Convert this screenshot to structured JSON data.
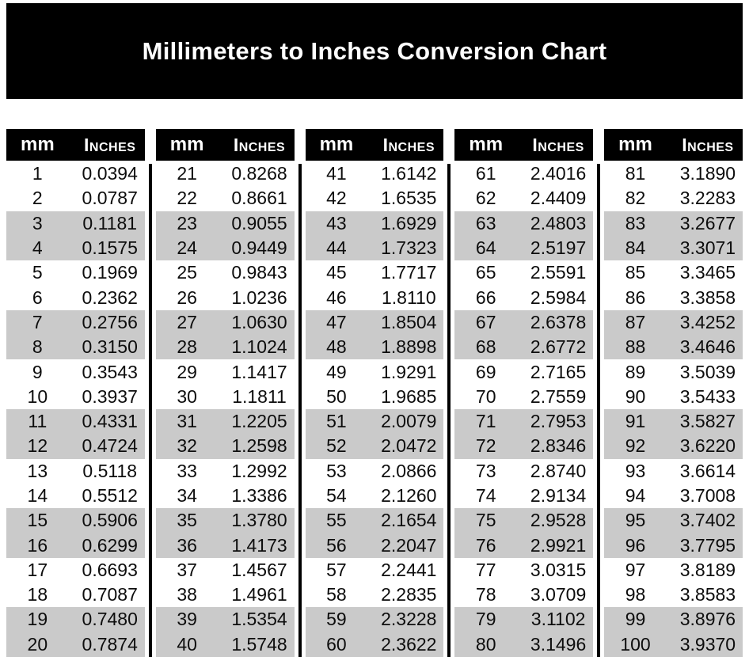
{
  "title": "Millimeters to Inches Conversion Chart",
  "columns": {
    "mm": "mm",
    "inches": "Inches"
  },
  "colors": {
    "page_bg": "#ffffff",
    "banner_bg": "#000000",
    "banner_text": "#ffffff",
    "header_bg": "#000000",
    "header_text": "#ffffff",
    "stripe": "#cacaca",
    "row_text": "#0d0d0d"
  },
  "tables": [
    {
      "rows": [
        {
          "mm": "1",
          "inches": "0.0394"
        },
        {
          "mm": "2",
          "inches": "0.0787"
        },
        {
          "mm": "3",
          "inches": "0.1181"
        },
        {
          "mm": "4",
          "inches": "0.1575"
        },
        {
          "mm": "5",
          "inches": "0.1969"
        },
        {
          "mm": "6",
          "inches": "0.2362"
        },
        {
          "mm": "7",
          "inches": "0.2756"
        },
        {
          "mm": "8",
          "inches": "0.3150"
        },
        {
          "mm": "9",
          "inches": "0.3543"
        },
        {
          "mm": "10",
          "inches": "0.3937"
        },
        {
          "mm": "11",
          "inches": "0.4331"
        },
        {
          "mm": "12",
          "inches": "0.4724"
        },
        {
          "mm": "13",
          "inches": "0.5118"
        },
        {
          "mm": "14",
          "inches": "0.5512"
        },
        {
          "mm": "15",
          "inches": "0.5906"
        },
        {
          "mm": "16",
          "inches": "0.6299"
        },
        {
          "mm": "17",
          "inches": "0.6693"
        },
        {
          "mm": "18",
          "inches": "0.7087"
        },
        {
          "mm": "19",
          "inches": "0.7480"
        },
        {
          "mm": "20",
          "inches": "0.7874"
        }
      ]
    },
    {
      "rows": [
        {
          "mm": "21",
          "inches": "0.8268"
        },
        {
          "mm": "22",
          "inches": "0.8661"
        },
        {
          "mm": "23",
          "inches": "0.9055"
        },
        {
          "mm": "24",
          "inches": "0.9449"
        },
        {
          "mm": "25",
          "inches": "0.9843"
        },
        {
          "mm": "26",
          "inches": "1.0236"
        },
        {
          "mm": "27",
          "inches": "1.0630"
        },
        {
          "mm": "28",
          "inches": "1.1024"
        },
        {
          "mm": "29",
          "inches": "1.1417"
        },
        {
          "mm": "30",
          "inches": "1.1811"
        },
        {
          "mm": "31",
          "inches": "1.2205"
        },
        {
          "mm": "32",
          "inches": "1.2598"
        },
        {
          "mm": "33",
          "inches": "1.2992"
        },
        {
          "mm": "34",
          "inches": "1.3386"
        },
        {
          "mm": "35",
          "inches": "1.3780"
        },
        {
          "mm": "36",
          "inches": "1.4173"
        },
        {
          "mm": "37",
          "inches": "1.4567"
        },
        {
          "mm": "38",
          "inches": "1.4961"
        },
        {
          "mm": "39",
          "inches": "1.5354"
        },
        {
          "mm": "40",
          "inches": "1.5748"
        }
      ]
    },
    {
      "rows": [
        {
          "mm": "41",
          "inches": "1.6142"
        },
        {
          "mm": "42",
          "inches": "1.6535"
        },
        {
          "mm": "43",
          "inches": "1.6929"
        },
        {
          "mm": "44",
          "inches": "1.7323"
        },
        {
          "mm": "45",
          "inches": "1.7717"
        },
        {
          "mm": "46",
          "inches": "1.8110"
        },
        {
          "mm": "47",
          "inches": "1.8504"
        },
        {
          "mm": "48",
          "inches": "1.8898"
        },
        {
          "mm": "49",
          "inches": "1.9291"
        },
        {
          "mm": "50",
          "inches": "1.9685"
        },
        {
          "mm": "51",
          "inches": "2.0079"
        },
        {
          "mm": "52",
          "inches": "2.0472"
        },
        {
          "mm": "53",
          "inches": "2.0866"
        },
        {
          "mm": "54",
          "inches": "2.1260"
        },
        {
          "mm": "55",
          "inches": "2.1654"
        },
        {
          "mm": "56",
          "inches": "2.2047"
        },
        {
          "mm": "57",
          "inches": "2.2441"
        },
        {
          "mm": "58",
          "inches": "2.2835"
        },
        {
          "mm": "59",
          "inches": "2.3228"
        },
        {
          "mm": "60",
          "inches": "2.3622"
        }
      ]
    },
    {
      "rows": [
        {
          "mm": "61",
          "inches": "2.4016"
        },
        {
          "mm": "62",
          "inches": "2.4409"
        },
        {
          "mm": "63",
          "inches": "2.4803"
        },
        {
          "mm": "64",
          "inches": "2.5197"
        },
        {
          "mm": "65",
          "inches": "2.5591"
        },
        {
          "mm": "66",
          "inches": "2.5984"
        },
        {
          "mm": "67",
          "inches": "2.6378"
        },
        {
          "mm": "68",
          "inches": "2.6772"
        },
        {
          "mm": "69",
          "inches": "2.7165"
        },
        {
          "mm": "70",
          "inches": "2.7559"
        },
        {
          "mm": "71",
          "inches": "2.7953"
        },
        {
          "mm": "72",
          "inches": "2.8346"
        },
        {
          "mm": "73",
          "inches": "2.8740"
        },
        {
          "mm": "74",
          "inches": "2.9134"
        },
        {
          "mm": "75",
          "inches": "2.9528"
        },
        {
          "mm": "76",
          "inches": "2.9921"
        },
        {
          "mm": "77",
          "inches": "3.0315"
        },
        {
          "mm": "78",
          "inches": "3.0709"
        },
        {
          "mm": "79",
          "inches": "3.1102"
        },
        {
          "mm": "80",
          "inches": "3.1496"
        }
      ]
    },
    {
      "rows": [
        {
          "mm": "81",
          "inches": "3.1890"
        },
        {
          "mm": "82",
          "inches": "3.2283"
        },
        {
          "mm": "83",
          "inches": "3.2677"
        },
        {
          "mm": "84",
          "inches": "3.3071"
        },
        {
          "mm": "85",
          "inches": "3.3465"
        },
        {
          "mm": "86",
          "inches": "3.3858"
        },
        {
          "mm": "87",
          "inches": "3.4252"
        },
        {
          "mm": "88",
          "inches": "3.4646"
        },
        {
          "mm": "89",
          "inches": "3.5039"
        },
        {
          "mm": "90",
          "inches": "3.5433"
        },
        {
          "mm": "91",
          "inches": "3.5827"
        },
        {
          "mm": "92",
          "inches": "3.6220"
        },
        {
          "mm": "93",
          "inches": "3.6614"
        },
        {
          "mm": "94",
          "inches": "3.7008"
        },
        {
          "mm": "95",
          "inches": "3.7402"
        },
        {
          "mm": "96",
          "inches": "3.7795"
        },
        {
          "mm": "97",
          "inches": "3.8189"
        },
        {
          "mm": "98",
          "inches": "3.8583"
        },
        {
          "mm": "99",
          "inches": "3.8976"
        },
        {
          "mm": "100",
          "inches": "3.9370"
        }
      ]
    }
  ]
}
